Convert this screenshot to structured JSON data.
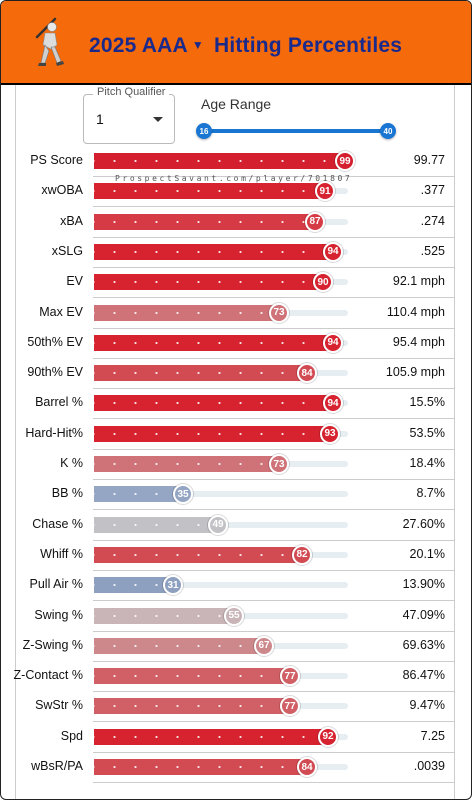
{
  "header": {
    "year_level": "2025 AAA",
    "title": "Hitting Percentiles",
    "logo_icon": "batter-silhouette-icon"
  },
  "pitch_qualifier": {
    "label": "Pitch Qualifier",
    "value": "1"
  },
  "age_range": {
    "label": "Age Range",
    "min": "16",
    "max": "40"
  },
  "watermark": "ProspectSavant.com/player/701807",
  "colors": {
    "header_bg": "#f56a0b",
    "title": "#1a2a8c",
    "slider": "#1976d2",
    "high": "#d0202f",
    "low": "#8ea0c0",
    "mid": "#c4bcbc"
  },
  "metrics": [
    {
      "label": "PS Score",
      "pct": 99,
      "value": "99.77",
      "color": "#d41f2e"
    },
    {
      "label": "xwOBA",
      "pct": 91,
      "value": ".377",
      "color": "#d6232f"
    },
    {
      "label": "xBA",
      "pct": 87,
      "value": ".274",
      "color": "#d63a45"
    },
    {
      "label": "xSLG",
      "pct": 94,
      "value": ".525",
      "color": "#d6232f"
    },
    {
      "label": "EV",
      "pct": 90,
      "value": "92.1 mph",
      "color": "#d6232f"
    },
    {
      "label": "Max EV",
      "pct": 73,
      "value": "110.4 mph",
      "color": "#cf7378"
    },
    {
      "label": "50th% EV",
      "pct": 94,
      "value": "95.4 mph",
      "color": "#d6232f"
    },
    {
      "label": "90th% EV",
      "pct": 84,
      "value": "105.9 mph",
      "color": "#d24a52"
    },
    {
      "label": "Barrel %",
      "pct": 94,
      "value": "15.5%",
      "color": "#d6232f"
    },
    {
      "label": "Hard-Hit%",
      "pct": 93,
      "value": "53.5%",
      "color": "#d6232f"
    },
    {
      "label": "K %",
      "pct": 73,
      "value": "18.4%",
      "color": "#cf7378"
    },
    {
      "label": "BB %",
      "pct": 35,
      "value": "8.7%",
      "color": "#95a5c4"
    },
    {
      "label": "Chase %",
      "pct": 49,
      "value": "27.60%",
      "color": "#c2c2c6"
    },
    {
      "label": "Whiff %",
      "pct": 82,
      "value": "20.1%",
      "color": "#d24a52"
    },
    {
      "label": "Pull Air %",
      "pct": 31,
      "value": "13.90%",
      "color": "#8ea0c0"
    },
    {
      "label": "Swing %",
      "pct": 55,
      "value": "47.09%",
      "color": "#c9b5b7"
    },
    {
      "label": "Z-Swing %",
      "pct": 67,
      "value": "69.63%",
      "color": "#cd888c"
    },
    {
      "label": "Z-Contact %",
      "pct": 77,
      "value": "86.47%",
      "color": "#d06066"
    },
    {
      "label": "SwStr %",
      "pct": 77,
      "value": "9.47%",
      "color": "#d06066"
    },
    {
      "label": "Spd",
      "pct": 92,
      "value": "7.25",
      "color": "#d6232f"
    },
    {
      "label": "wBsR/PA",
      "pct": 84,
      "value": ".0039",
      "color": "#d24a52"
    }
  ]
}
